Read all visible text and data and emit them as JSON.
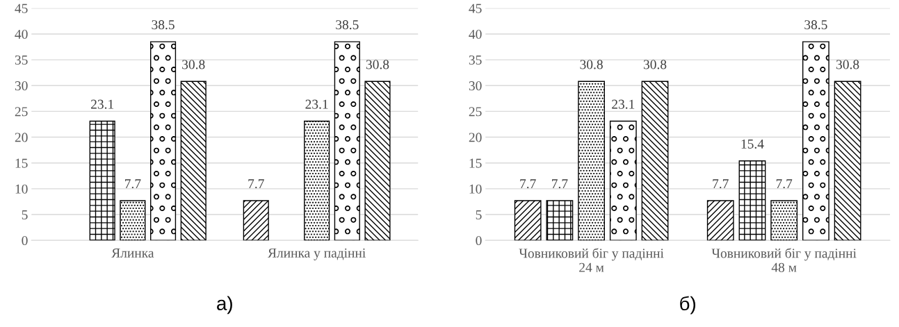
{
  "chart_data": [
    {
      "type": "bar",
      "title": "а)",
      "categories": [
        "Ялинка",
        "Ялинка у падінні"
      ],
      "series": [
        {
          "color": "#000000",
          "values": [
            null,
            7.7
          ]
        },
        {
          "color": "#000000",
          "values": [
            23.1,
            null
          ]
        },
        {
          "color": "#000000",
          "values": [
            7.7,
            23.1
          ]
        },
        {
          "color": "#000000",
          "values": [
            38.5,
            38.5
          ]
        },
        {
          "color": "#000000",
          "values": [
            30.8,
            30.8
          ]
        }
      ],
      "ylim": [
        0,
        45
      ],
      "yticks": [
        0,
        5,
        10,
        15,
        20,
        25,
        30,
        35,
        40,
        45
      ],
      "grid": "y",
      "legend": false,
      "data_labels": true
    },
    {
      "type": "bar",
      "title": "б)",
      "categories": [
        "Човниковий біг у падінні\n24 м",
        "Човниковий біг у падінні\n48 м"
      ],
      "series": [
        {
          "color": "#000000",
          "values": [
            7.7,
            7.7
          ]
        },
        {
          "color": "#000000",
          "values": [
            7.7,
            15.4
          ]
        },
        {
          "color": "#000000",
          "values": [
            30.8,
            7.7
          ]
        },
        {
          "color": "#000000",
          "values": [
            23.1,
            38.5
          ]
        },
        {
          "color": "#000000",
          "values": [
            30.8,
            30.8
          ]
        }
      ],
      "ylim": [
        0,
        45
      ],
      "yticks": [
        0,
        5,
        10,
        15,
        20,
        25,
        30,
        35,
        40,
        45
      ],
      "grid": "y",
      "legend": false,
      "data_labels": true
    }
  ]
}
